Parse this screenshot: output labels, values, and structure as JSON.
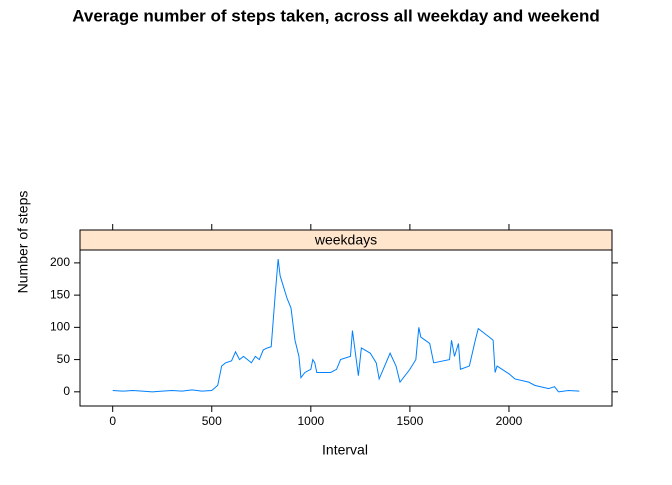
{
  "chart_data": {
    "type": "line",
    "title": "Average number of steps taken, across all weekday and weekend",
    "panel": "weekdays",
    "x_label": "Interval",
    "y_label": "Number of steps",
    "x": [
      0,
      50,
      100,
      150,
      200,
      250,
      300,
      350,
      400,
      450,
      500,
      530,
      550,
      570,
      600,
      620,
      640,
      660,
      700,
      720,
      740,
      760,
      780,
      800,
      820,
      835,
      845,
      860,
      880,
      900,
      920,
      940,
      950,
      970,
      1000,
      1010,
      1020,
      1030,
      1100,
      1130,
      1150,
      1200,
      1210,
      1225,
      1240,
      1255,
      1300,
      1330,
      1345,
      1400,
      1430,
      1450,
      1500,
      1530,
      1545,
      1555,
      1600,
      1620,
      1700,
      1710,
      1725,
      1745,
      1755,
      1800,
      1830,
      1845,
      1900,
      1920,
      1930,
      1940,
      2000,
      2030,
      2100,
      2130,
      2200,
      2230,
      2250,
      2300,
      2355
    ],
    "series": [
      {
        "name": "weekdays",
        "color": "#0080ff",
        "values": [
          2,
          1,
          2,
          1,
          0,
          1,
          2,
          1,
          3,
          1,
          2,
          10,
          40,
          45,
          48,
          62,
          50,
          55,
          45,
          55,
          50,
          65,
          68,
          70,
          150,
          206,
          180,
          165,
          145,
          130,
          80,
          55,
          22,
          30,
          35,
          50,
          45,
          30,
          30,
          35,
          50,
          55,
          95,
          60,
          25,
          68,
          60,
          45,
          20,
          60,
          40,
          15,
          35,
          50,
          100,
          85,
          75,
          45,
          50,
          80,
          55,
          75,
          35,
          40,
          80,
          98,
          85,
          80,
          30,
          40,
          28,
          20,
          15,
          10,
          5,
          8,
          0,
          2,
          1
        ]
      }
    ],
    "xlim": [
      -165,
      2520
    ],
    "ylim": [
      -22,
      220
    ],
    "xticks": [
      0,
      500,
      1000,
      1500,
      2000
    ],
    "yticks": [
      0,
      50,
      100,
      150,
      200
    ],
    "strip_color": "#ffe5cc"
  }
}
